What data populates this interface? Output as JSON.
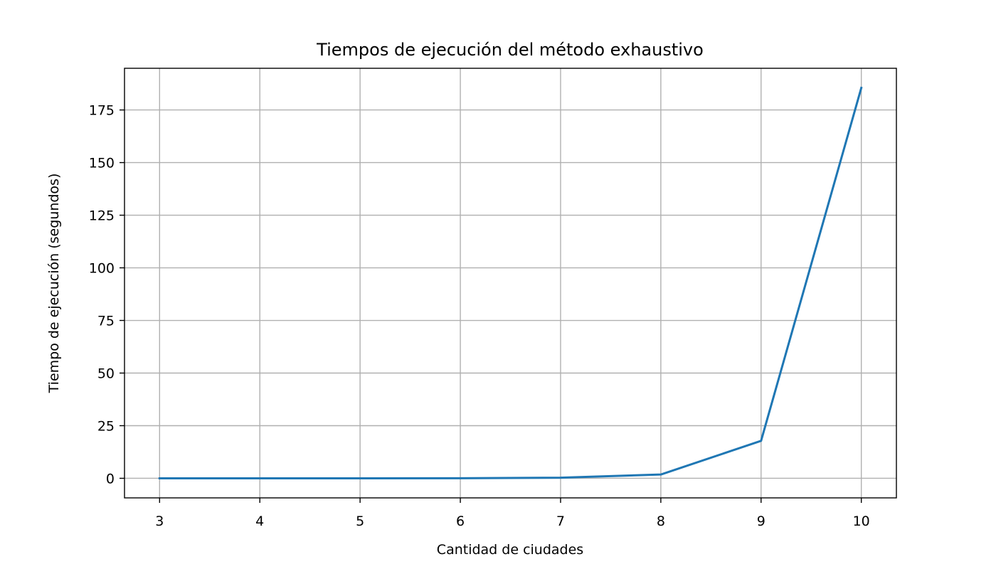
{
  "chart_data": {
    "type": "line",
    "title": "Tiempos de ejecución del método exhaustivo",
    "xlabel": "Cantidad de ciudades",
    "ylabel": "Tiempo de ejecución (segundos)",
    "x": [
      3,
      4,
      5,
      6,
      7,
      8,
      9,
      10
    ],
    "x_tick_labels": [
      "3",
      "4",
      "5",
      "6",
      "7",
      "8",
      "9",
      "10"
    ],
    "y_ticks": [
      0,
      25,
      50,
      75,
      100,
      125,
      150,
      175
    ],
    "y_tick_labels": [
      "0",
      "25",
      "50",
      "75",
      "100",
      "125",
      "150",
      "175"
    ],
    "series": [
      {
        "values": [
          0.0,
          0.0,
          0.01,
          0.05,
          0.3,
          1.8,
          17.8,
          185.5
        ],
        "color": "#1f77b4"
      }
    ],
    "xlim": [
      2.65,
      10.35
    ],
    "ylim": [
      -9.3,
      194.8
    ],
    "grid": true,
    "grid_color": "#b0b0b0",
    "legend": false
  }
}
